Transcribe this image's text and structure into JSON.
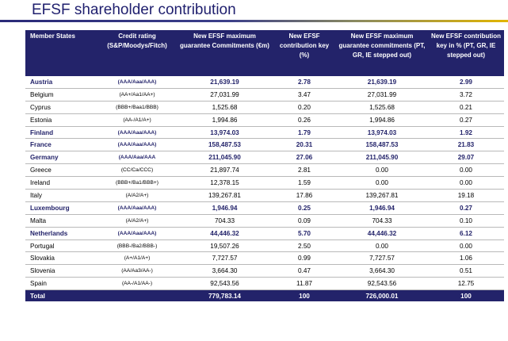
{
  "title": "EFSF shareholder contribution",
  "columns": [
    "Member States",
    "Credit rating (S&P/Moodys/Fitch)",
    "New EFSF maximum guarantee Commitments (€m)",
    "New EFSF contribution key (%)",
    "New EFSF maximum guarantee commitments (PT, GR, IE stepped out)",
    "New EFSF contribution key in % (PT, GR, IE stepped out)"
  ],
  "rows": [
    {
      "state": "Austria",
      "rating": "(AAA/Aaa/AAA)",
      "commit": "21,639.19",
      "key": "2.78",
      "commit_so": "21,639.19",
      "key_so": "2.99",
      "highlight": true
    },
    {
      "state": "Belgium",
      "rating": "(AA+/Aa1/AA+)",
      "commit": "27,031.99",
      "key": "3.47",
      "commit_so": "27,031.99",
      "key_so": "3.72",
      "highlight": false
    },
    {
      "state": "Cyprus",
      "rating": "(BBB+/Baa1/BBB)",
      "commit": "1,525.68",
      "key": "0.20",
      "commit_so": "1,525.68",
      "key_so": "0.21",
      "highlight": false
    },
    {
      "state": "Estonia",
      "rating": "(AA-/A1/A+)",
      "commit": "1,994.86",
      "key": "0.26",
      "commit_so": "1,994.86",
      "key_so": "0.27",
      "highlight": false
    },
    {
      "state": "Finland",
      "rating": "(AAA/Aaa/AAA)",
      "commit": "13,974.03",
      "key": "1.79",
      "commit_so": "13,974.03",
      "key_so": "1.92",
      "highlight": true
    },
    {
      "state": "France",
      "rating": "(AAA/Aaa/AAA)",
      "commit": "158,487.53",
      "key": "20.31",
      "commit_so": "158,487.53",
      "key_so": "21.83",
      "highlight": true
    },
    {
      "state": "Germany",
      "rating": "(AAA/Aaa/AAA",
      "commit": "211,045.90",
      "key": "27.06",
      "commit_so": "211,045.90",
      "key_so": "29.07",
      "highlight": true
    },
    {
      "state": "Greece",
      "rating": "(CC/Ca/CCC)",
      "commit": "21,897.74",
      "key": "2.81",
      "commit_so": "0.00",
      "key_so": "0.00",
      "highlight": false
    },
    {
      "state": "Ireland",
      "rating": "(BBB+/Ba1/BBB+)",
      "commit": "12,378.15",
      "key": "1.59",
      "commit_so": "0.00",
      "key_so": "0.00",
      "highlight": false
    },
    {
      "state": "Italy",
      "rating": "(A/A2/A+)",
      "commit": "139,267.81",
      "key": "17.86",
      "commit_so": "139,267.81",
      "key_so": "19.18",
      "highlight": false
    },
    {
      "state": "Luxembourg",
      "rating": "(AAA/Aaa/AAA)",
      "commit": "1,946.94",
      "key": "0.25",
      "commit_so": "1,946.94",
      "key_so": "0.27",
      "highlight": true
    },
    {
      "state": "Malta",
      "rating": "(A/A2/A+)",
      "commit": "704.33",
      "key": "0.09",
      "commit_so": "704.33",
      "key_so": "0.10",
      "highlight": false
    },
    {
      "state": "Netherlands",
      "rating": "(AAA/Aaa/AAA)",
      "commit": "44,446.32",
      "key": "5.70",
      "commit_so": "44,446.32",
      "key_so": "6.12",
      "highlight": true
    },
    {
      "state": "Portugal",
      "rating": "(BBB-/Ba2/BBB-)",
      "commit": "19,507.26",
      "key": "2.50",
      "commit_so": "0.00",
      "key_so": "0.00",
      "highlight": false
    },
    {
      "state": "Slovakia",
      "rating": "(A+/A1/A+)",
      "commit": "7,727.57",
      "key": "0.99",
      "commit_so": "7,727.57",
      "key_so": "1.06",
      "highlight": false
    },
    {
      "state": "Slovenia",
      "rating": "(AA/Aa3/AA-)",
      "commit": "3,664.30",
      "key": "0.47",
      "commit_so": "3,664.30",
      "key_so": "0.51",
      "highlight": false
    },
    {
      "state": "Spain",
      "rating": "(AA-/A1/AA-)",
      "commit": "92,543.56",
      "key": "11.87",
      "commit_so": "92,543.56",
      "key_so": "12.75",
      "highlight": false
    }
  ],
  "total": {
    "label": "Total",
    "rating": "",
    "commit": "779,783.14",
    "key": "100",
    "commit_so": "726,000.01",
    "key_so": "100"
  },
  "colors": {
    "header_bg": "#23236a",
    "highlight_text": "#23236a",
    "accent_gold": "#e2b500"
  }
}
